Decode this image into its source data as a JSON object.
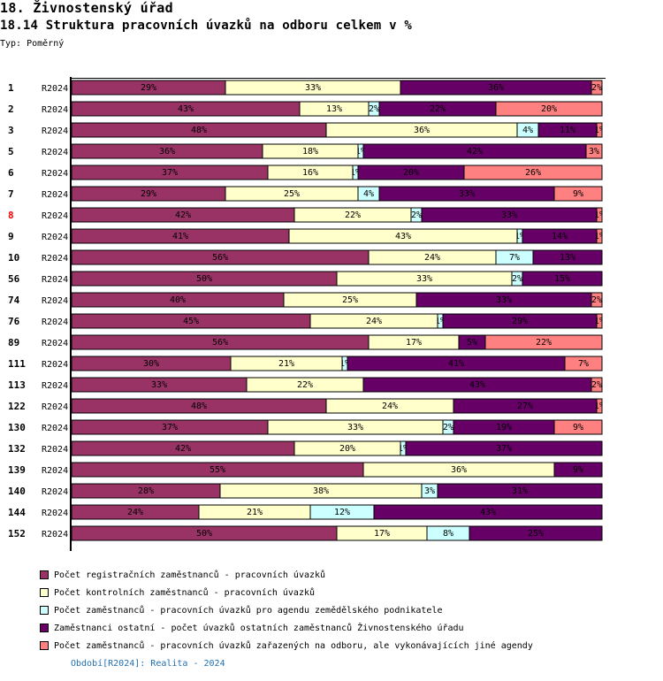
{
  "header": {
    "title": "18. Živnostenský úřad",
    "subtitle": "18.14 Struktura pracovních úvazků na odboru celkem v %",
    "type_label": "Typ: Poměrný"
  },
  "chart_data": {
    "type": "bar",
    "orientation": "horizontal",
    "stacked": true,
    "normalized": true,
    "title": "18.14 Struktura pracovních úvazků na odboru celkem v %",
    "xlabel": "",
    "ylabel": "",
    "xlim": [
      0,
      100
    ],
    "grid": false,
    "legend_position": "bottom",
    "highlighted_category": "8",
    "categories": [
      "1",
      "2",
      "3",
      "5",
      "6",
      "7",
      "8",
      "9",
      "10",
      "56",
      "74",
      "76",
      "89",
      "111",
      "113",
      "122",
      "130",
      "132",
      "139",
      "140",
      "144",
      "152"
    ],
    "period_code": "R2024",
    "series": [
      {
        "name": "Počet registračních zaměstnanců - pracovních úvazků",
        "color": "#993366",
        "values": [
          29,
          43,
          48,
          36,
          37,
          29,
          42,
          41,
          56,
          50,
          40,
          45,
          56,
          30,
          33,
          48,
          37,
          42,
          55,
          28,
          24,
          50
        ]
      },
      {
        "name": "Počet kontrolních zaměstnanců - pracovních úvazků",
        "color": "#ffffcc",
        "values": [
          33,
          13,
          36,
          18,
          16,
          25,
          22,
          43,
          24,
          33,
          25,
          24,
          17,
          21,
          22,
          24,
          33,
          20,
          36,
          38,
          21,
          17
        ]
      },
      {
        "name": "Počet zaměstnanců - pracovních úvazků pro agendu zemědělského podnikatele",
        "color": "#ccffff",
        "values": [
          0,
          2,
          4,
          1,
          1,
          4,
          2,
          1,
          7,
          2,
          0,
          1,
          0,
          1,
          0,
          0,
          2,
          1,
          0,
          3,
          12,
          8
        ]
      },
      {
        "name": "Zaměstnanci ostatní - počet úvazků ostatních zaměstnanců Živnostenského úřadu",
        "color": "#660066",
        "values": [
          36,
          22,
          11,
          42,
          20,
          33,
          33,
          14,
          13,
          15,
          33,
          29,
          5,
          41,
          43,
          27,
          19,
          37,
          9,
          31,
          43,
          25
        ]
      },
      {
        "name": "Počet zaměstnanců - pracovních úvazků zařazených na odboru, ale vykonávajících jiné agendy",
        "color": "#ff8080",
        "values": [
          2,
          20,
          1,
          3,
          26,
          9,
          1,
          1,
          0,
          0,
          2,
          1,
          22,
          7,
          2,
          1,
          9,
          0,
          0,
          0,
          0,
          0
        ]
      }
    ]
  },
  "footer": {
    "period_note": "Období[R2024]: Realita - 2024"
  },
  "colors": {
    "highlight_label": "#ff0000",
    "period_note": "#1f6fb0"
  }
}
